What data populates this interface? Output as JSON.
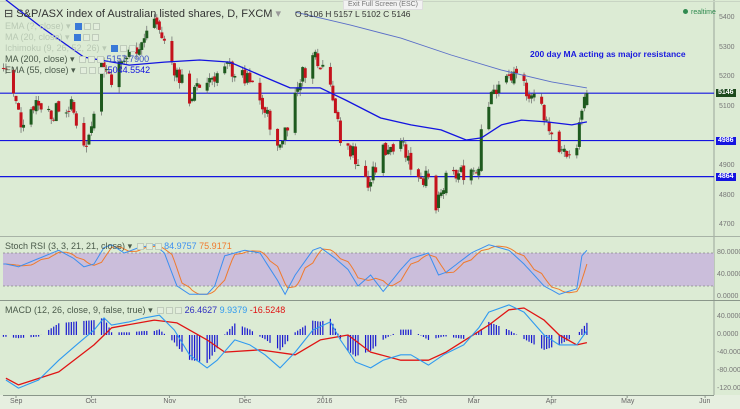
{
  "header": {
    "title": "S&P/ASX index of Australian listed shares, D, FXCM",
    "ohlc": "O 5106  H 5157  L 5102  C 5146",
    "exit_fullscreen": "Exit Full Screen (ESC)",
    "realtime": "realtime"
  },
  "indicators": [
    {
      "label": "EMA (?, close)",
      "visible": false
    },
    {
      "label": "MA (20, close)",
      "visible": false
    },
    {
      "label": "Ichimoku (9, 26, 52, 26)",
      "visible": false
    },
    {
      "label": "MA (200, close)",
      "value": "5157.7900",
      "visible": true
    },
    {
      "label": "EMA (55, close)",
      "value": "5044.5542",
      "visible": true
    }
  ],
  "annotation": "200 day MA acting as major resistance",
  "colors": {
    "up": "#1e5a1e",
    "down": "#c4121c",
    "ema55": "#1414e0",
    "ma200": "#5a6ec8",
    "level": "#1414e0",
    "stoch_k": "#3c8ff0",
    "stoch_d": "#f07a2c",
    "macd": "#2f9af0",
    "signal": "#e01414",
    "hist": "#1a1ad0",
    "band": "#cbbedb"
  },
  "price_axis": {
    "ticks": [
      "5400",
      "5300",
      "5200",
      "5100",
      "4900",
      "4800",
      "4700"
    ],
    "range": [
      4650,
      5430
    ]
  },
  "levels": [
    {
      "value": 5146,
      "label": "5146",
      "color": "#1d4a1d"
    },
    {
      "value": 4986,
      "label": "4986",
      "color": "#1414e0"
    },
    {
      "value": 4864,
      "label": "4864",
      "color": "#1414e0"
    }
  ],
  "x_axis": {
    "labels": [
      {
        "text": "Sep",
        "date": "2015-09-01"
      },
      {
        "text": "Oct",
        "date": "2015-10-01"
      },
      {
        "text": "Nov",
        "date": "2015-11-01"
      },
      {
        "text": "Dec",
        "date": "2015-12-01"
      },
      {
        "text": "2016",
        "date": "2016-01-01"
      },
      {
        "text": "Feb",
        "date": "2016-02-01"
      },
      {
        "text": "Mar",
        "date": "2016-03-01"
      },
      {
        "text": "Apr",
        "date": "2016-04-01"
      },
      {
        "text": "May",
        "date": "2016-05-01"
      },
      {
        "text": "Jun",
        "date": "2016-06-01"
      }
    ]
  },
  "chart_data": {
    "type": "candlestick",
    "last_bar": {
      "open": 5106,
      "high": 5157,
      "low": 5102,
      "close": 5146
    },
    "close_path": [
      [
        "2015-08-28",
        5230
      ],
      [
        "2015-09-03",
        5050
      ],
      [
        "2015-09-09",
        5120
      ],
      [
        "2015-09-15",
        5080
      ],
      [
        "2015-09-23",
        5100
      ],
      [
        "2015-09-29",
        4960
      ],
      [
        "2015-10-05",
        5250
      ],
      [
        "2015-10-09",
        5200
      ],
      [
        "2015-10-16",
        5280
      ],
      [
        "2015-10-22",
        5330
      ],
      [
        "2015-10-26",
        5400
      ],
      [
        "2015-11-02",
        5250
      ],
      [
        "2015-11-09",
        5130
      ],
      [
        "2015-11-17",
        5200
      ],
      [
        "2015-11-25",
        5230
      ],
      [
        "2015-12-03",
        5180
      ],
      [
        "2015-12-11",
        5050
      ],
      [
        "2015-12-14",
        4950
      ],
      [
        "2015-12-18",
        5050
      ],
      [
        "2015-12-23",
        5200
      ],
      [
        "2015-12-29",
        5280
      ],
      [
        "2016-01-04",
        5200
      ],
      [
        "2016-01-08",
        4980
      ],
      [
        "2016-01-13",
        4950
      ],
      [
        "2016-01-19",
        4830
      ],
      [
        "2016-01-25",
        4950
      ],
      [
        "2016-02-01",
        5000
      ],
      [
        "2016-02-05",
        4900
      ],
      [
        "2016-02-12",
        4850
      ],
      [
        "2016-02-15",
        4750
      ],
      [
        "2016-02-19",
        4850
      ],
      [
        "2016-02-26",
        4880
      ],
      [
        "2016-03-03",
        4900
      ],
      [
        "2016-03-04",
        5050
      ],
      [
        "2016-03-09",
        5150
      ],
      [
        "2016-03-15",
        5200
      ],
      [
        "2016-03-21",
        5170
      ],
      [
        "2016-03-28",
        5100
      ],
      [
        "2016-03-31",
        5030
      ],
      [
        "2016-04-06",
        4930
      ],
      [
        "2016-04-11",
        4960
      ],
      [
        "2016-04-13",
        5100
      ],
      [
        "2016-04-15",
        5146
      ]
    ],
    "ema55": [
      [
        "2015-08-28",
        5461
      ],
      [
        "2015-09-10",
        5376
      ],
      [
        "2015-09-28",
        5268
      ],
      [
        "2015-10-16",
        5241
      ],
      [
        "2015-10-30",
        5251
      ],
      [
        "2015-11-13",
        5258
      ],
      [
        "2015-11-25",
        5251
      ],
      [
        "2015-12-07",
        5207
      ],
      [
        "2015-12-19",
        5164
      ],
      [
        "2015-12-31",
        5164
      ],
      [
        "2016-01-10",
        5123
      ],
      [
        "2016-01-24",
        5062
      ],
      [
        "2016-02-05",
        5039
      ],
      [
        "2016-02-17",
        5022
      ],
      [
        "2016-02-27",
        4988
      ],
      [
        "2016-03-04",
        4995
      ],
      [
        "2016-03-12",
        5039
      ],
      [
        "2016-03-20",
        5055
      ],
      [
        "2016-03-30",
        5049
      ],
      [
        "2016-04-09",
        5039
      ],
      [
        "2016-04-15",
        5049
      ]
    ],
    "ma200": [
      [
        "2015-12-21",
        5420
      ],
      [
        "2016-01-12",
        5376
      ],
      [
        "2016-02-01",
        5332
      ],
      [
        "2016-02-21",
        5275
      ],
      [
        "2016-03-12",
        5224
      ],
      [
        "2016-04-01",
        5184
      ],
      [
        "2016-04-15",
        5164
      ]
    ],
    "stoch_rsi": {
      "label": "Stoch RSI (3, 3, 21, 21, close)",
      "k_value": "84.9757",
      "d_value": "75.9171",
      "upper": 80,
      "lower": 20,
      "ticks": [
        "80.0000",
        "40.0000",
        "0.0000"
      ],
      "k": [
        [
          "2015-08-28",
          60
        ],
        [
          "2015-09-02",
          55
        ],
        [
          "2015-09-10",
          70
        ],
        [
          "2015-09-18",
          85
        ],
        [
          "2015-09-24",
          70
        ],
        [
          "2015-09-28",
          55
        ],
        [
          "2015-10-02",
          60
        ],
        [
          "2015-10-06",
          90
        ],
        [
          "2015-10-09",
          95
        ],
        [
          "2015-10-14",
          80
        ],
        [
          "2015-10-20",
          90
        ],
        [
          "2015-10-26",
          95
        ],
        [
          "2015-10-30",
          80
        ],
        [
          "2015-11-04",
          20
        ],
        [
          "2015-11-09",
          5
        ],
        [
          "2015-11-16",
          5
        ],
        [
          "2015-11-19",
          20
        ],
        [
          "2015-11-23",
          75
        ],
        [
          "2015-12-01",
          85
        ],
        [
          "2015-12-07",
          80
        ],
        [
          "2015-12-14",
          30
        ],
        [
          "2015-12-17",
          5
        ],
        [
          "2015-12-21",
          40
        ],
        [
          "2015-12-28",
          85
        ],
        [
          "2015-12-31",
          90
        ],
        [
          "2016-01-06",
          70
        ],
        [
          "2016-01-11",
          50
        ],
        [
          "2016-01-15",
          20
        ],
        [
          "2016-01-20",
          40
        ],
        [
          "2016-01-25",
          10
        ],
        [
          "2016-02-01",
          50
        ],
        [
          "2016-02-05",
          70
        ],
        [
          "2016-02-12",
          80
        ],
        [
          "2016-02-16",
          40
        ],
        [
          "2016-02-19",
          45
        ],
        [
          "2016-02-29",
          80
        ],
        [
          "2016-03-07",
          95
        ],
        [
          "2016-03-15",
          85
        ],
        [
          "2016-03-21",
          60
        ],
        [
          "2016-03-29",
          20
        ],
        [
          "2016-04-04",
          5
        ],
        [
          "2016-04-11",
          15
        ],
        [
          "2016-04-13",
          75
        ],
        [
          "2016-04-15",
          85
        ]
      ]
    },
    "macd": {
      "label": "MACD (12, 26, close, 9, false, true)",
      "hist_value": "26.4627",
      "macd_value": "9.9379",
      "signal_value": "-16.5248",
      "ticks": [
        "40.0000",
        "0.0000",
        "-40.0000",
        "-80.0000",
        "-120.0000"
      ],
      "macd": [
        [
          "2015-08-28",
          -100
        ],
        [
          "2015-09-02",
          -118
        ],
        [
          "2015-09-10",
          -100
        ],
        [
          "2015-09-18",
          -56
        ],
        [
          "2015-09-25",
          -22
        ],
        [
          "2015-10-02",
          11
        ],
        [
          "2015-10-06",
          38
        ],
        [
          "2015-10-09",
          22
        ],
        [
          "2015-10-16",
          29
        ],
        [
          "2015-10-22",
          38
        ],
        [
          "2015-10-28",
          44
        ],
        [
          "2015-11-03",
          11
        ],
        [
          "2015-11-09",
          -44
        ],
        [
          "2015-11-16",
          -73
        ],
        [
          "2015-11-20",
          -56
        ],
        [
          "2015-11-27",
          -11
        ],
        [
          "2015-12-03",
          -22
        ],
        [
          "2015-12-09",
          -44
        ],
        [
          "2015-12-15",
          -73
        ],
        [
          "2015-12-21",
          -38
        ],
        [
          "2015-12-28",
          11
        ],
        [
          "2016-01-04",
          29
        ],
        [
          "2016-01-08",
          -11
        ],
        [
          "2016-01-14",
          -60
        ],
        [
          "2016-01-20",
          -73
        ],
        [
          "2016-01-25",
          -56
        ],
        [
          "2016-02-01",
          -44
        ],
        [
          "2016-02-05",
          -44
        ],
        [
          "2016-02-12",
          -67
        ],
        [
          "2016-02-18",
          -44
        ],
        [
          "2016-02-26",
          -22
        ],
        [
          "2016-03-03",
          16
        ],
        [
          "2016-03-07",
          51
        ],
        [
          "2016-03-15",
          67
        ],
        [
          "2016-03-21",
          51
        ],
        [
          "2016-03-29",
          0
        ],
        [
          "2016-04-04",
          -22
        ],
        [
          "2016-04-11",
          -22
        ],
        [
          "2016-04-15",
          10
        ]
      ],
      "signal": [
        [
          "2015-08-28",
          -96
        ],
        [
          "2015-09-02",
          -111
        ],
        [
          "2015-09-18",
          -82
        ],
        [
          "2015-10-02",
          -22
        ],
        [
          "2015-10-09",
          16
        ],
        [
          "2015-10-26",
          33
        ],
        [
          "2015-11-04",
          27
        ],
        [
          "2015-11-16",
          -11
        ],
        [
          "2015-11-23",
          -38
        ],
        [
          "2015-12-07",
          -33
        ],
        [
          "2015-12-21",
          -44
        ],
        [
          "2015-12-31",
          -11
        ],
        [
          "2016-01-11",
          0
        ],
        [
          "2016-01-20",
          -38
        ],
        [
          "2016-02-01",
          -56
        ],
        [
          "2016-02-12",
          -56
        ],
        [
          "2016-02-19",
          -38
        ],
        [
          "2016-03-07",
          22
        ],
        [
          "2016-03-15",
          56
        ],
        [
          "2016-03-21",
          60
        ],
        [
          "2016-03-29",
          33
        ],
        [
          "2016-04-04",
          0
        ],
        [
          "2016-04-11",
          -22
        ],
        [
          "2016-04-15",
          -17
        ]
      ]
    }
  }
}
